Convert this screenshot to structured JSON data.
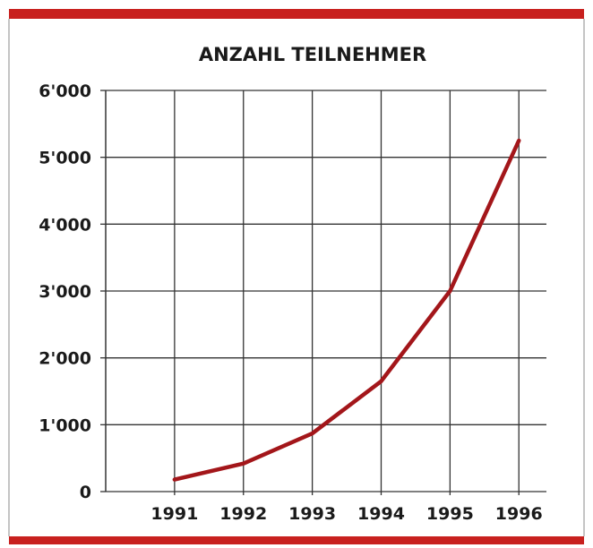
{
  "chart_data": {
    "type": "line",
    "title": "ANZAHL TEILNEHMER",
    "x": [
      1991,
      1992,
      1993,
      1994,
      1995,
      1996
    ],
    "series": [
      {
        "name": "Teilnehmer",
        "color": "#a3161a",
        "values": [
          180,
          420,
          870,
          1650,
          3000,
          5250
        ]
      }
    ],
    "xlim": [
      1990,
      1996.4
    ],
    "xticks": [
      1991,
      1992,
      1993,
      1994,
      1995,
      1996
    ],
    "ylim": [
      0,
      6000
    ],
    "yticks": [
      {
        "value": 0,
        "label": "0"
      },
      {
        "value": 1000,
        "label": "1'000"
      },
      {
        "value": 2000,
        "label": "2'000"
      },
      {
        "value": 3000,
        "label": "3'000"
      },
      {
        "value": 4000,
        "label": "4'000"
      },
      {
        "value": 5000,
        "label": "5'000"
      },
      {
        "value": 6000,
        "label": "6'000"
      }
    ],
    "grid": true
  }
}
